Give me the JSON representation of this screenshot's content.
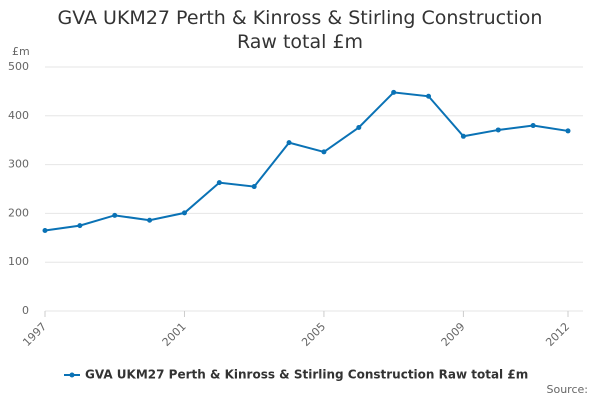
{
  "chart_data": {
    "type": "line",
    "title": "GVA UKM27 Perth & Kinross & Stirling Construction Raw total £m",
    "y_label": "£m",
    "source": "Source:",
    "x": [
      1997,
      1998,
      1999,
      2000,
      2001,
      2002,
      2003,
      2004,
      2005,
      2006,
      2007,
      2008,
      2009,
      2010,
      2011,
      2012
    ],
    "series": [
      {
        "name": "GVA UKM27 Perth & Kinross & Stirling Construction Raw total £m",
        "color": "#0a72b5",
        "values": [
          165,
          175,
          196,
          186,
          201,
          263,
          255,
          345,
          326,
          376,
          448,
          440,
          358,
          371,
          380,
          369
        ]
      }
    ],
    "xlim": [
      1997,
      2012
    ],
    "xticks": [
      1997,
      2001,
      2005,
      2009,
      2012
    ],
    "ylim": [
      0,
      500
    ],
    "yticks": [
      0,
      100,
      200,
      300,
      400,
      500
    ],
    "grid": true,
    "legend": "bottom"
  }
}
